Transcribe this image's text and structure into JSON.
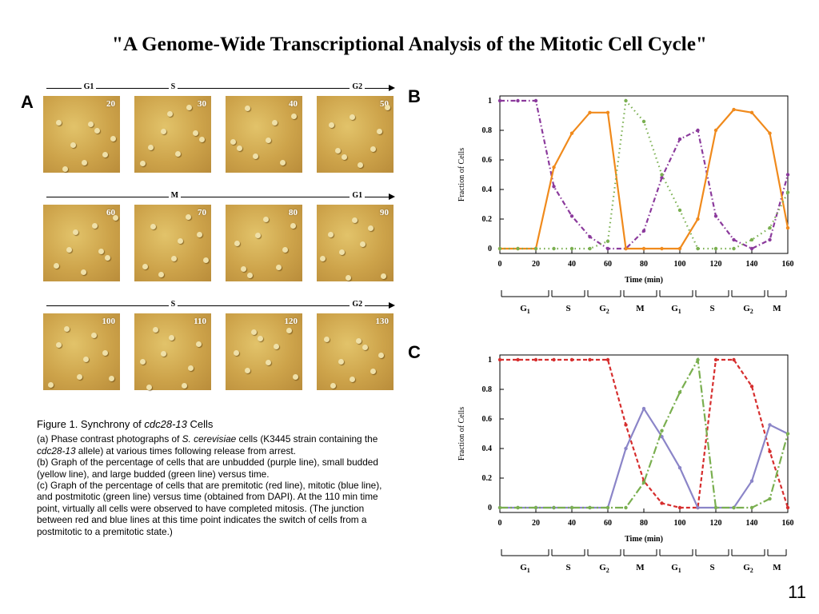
{
  "title": "\"A Genome-Wide Transcriptional Analysis of the Mitotic Cell Cycle\"",
  "page_number": "11",
  "panel_a": {
    "label": "A",
    "rows": [
      {
        "phases": [
          {
            "label": "G1",
            "pos": 0.1
          },
          {
            "label": "S",
            "pos": 0.35
          },
          {
            "label": "G2",
            "pos": 0.87
          }
        ],
        "photos": [
          "20",
          "30",
          "40",
          "50"
        ]
      },
      {
        "phases": [
          {
            "label": "M",
            "pos": 0.35
          },
          {
            "label": "G1",
            "pos": 0.87
          }
        ],
        "photos": [
          "60",
          "70",
          "80",
          "90"
        ]
      },
      {
        "phases": [
          {
            "label": "S",
            "pos": 0.35
          },
          {
            "label": "G2",
            "pos": 0.87
          }
        ],
        "photos": [
          "100",
          "110",
          "120",
          "130"
        ]
      }
    ]
  },
  "caption": {
    "title_prefix": "Figure 1.  Synchrony of ",
    "title_italic": "cdc28-13",
    "title_suffix": " Cells",
    "a_1": "(a) Phase contrast photographs of ",
    "a_it1": "S. cerevisiae",
    "a_2": " cells (K3445 strain containing the ",
    "a_it2": "cdc28-13",
    "a_3": " allele) at various times following release from arrest.",
    "b": "(b) Graph of the percentage of cells that are unbudded (purple line), small budded (yellow line), and large budded (green line) versus time.",
    "c": "(c) Graph of the percentage of cells that are premitotic (red line), mitotic (blue line), and postmitotic (green line) versus time (obtained from DAPI). At the 110 min time point, virtually all cells were observed to have completed mitosis. (The junction between red and blue lines at this time point indicates the switch of cells from a postmitotic to a premitotic state.)"
  },
  "chart_data": [
    {
      "panel": "B",
      "type": "line",
      "xlabel": "Time (min)",
      "ylabel": "Fraction of Cells",
      "xlim": [
        0,
        160
      ],
      "ylim": [
        0,
        1
      ],
      "xticks": [
        0,
        20,
        40,
        60,
        80,
        100,
        120,
        140,
        160
      ],
      "yticks": [
        0,
        0.2,
        0.4,
        0.6,
        0.8,
        1
      ],
      "series": [
        {
          "color": "#8b3a9c",
          "style": "dashdot",
          "x": [
            0,
            10,
            20,
            30,
            40,
            50,
            60,
            70,
            80,
            90,
            100,
            110,
            120,
            130,
            140,
            150,
            160
          ],
          "y": [
            1,
            1,
            1,
            0.42,
            0.22,
            0.08,
            0.0,
            0.0,
            0.12,
            0.48,
            0.74,
            0.8,
            0.22,
            0.06,
            0.0,
            0.06,
            0.5
          ]
        },
        {
          "color": "#f08a1c",
          "style": "solid",
          "x": [
            0,
            10,
            20,
            30,
            40,
            50,
            60,
            70,
            80,
            90,
            100,
            110,
            120,
            130,
            140,
            150,
            160
          ],
          "y": [
            0,
            0,
            0,
            0.55,
            0.78,
            0.92,
            0.92,
            0.0,
            0.0,
            0.0,
            0.0,
            0.2,
            0.8,
            0.94,
            0.92,
            0.78,
            0.14
          ]
        },
        {
          "color": "#7aaf50",
          "style": "dotted",
          "x": [
            0,
            10,
            20,
            30,
            40,
            50,
            60,
            70,
            80,
            90,
            100,
            110,
            120,
            130,
            140,
            150,
            160
          ],
          "y": [
            0,
            0,
            0,
            0,
            0,
            0,
            0.05,
            1.0,
            0.86,
            0.5,
            0.26,
            0.0,
            0.0,
            0.0,
            0.06,
            0.14,
            0.38
          ]
        }
      ],
      "phases": [
        {
          "label": "G",
          "sub": "1",
          "start": 0,
          "end": 28
        },
        {
          "label": "S",
          "sub": "",
          "start": 28,
          "end": 48
        },
        {
          "label": "G",
          "sub": "2",
          "start": 48,
          "end": 68
        },
        {
          "label": "M",
          "sub": "",
          "start": 68,
          "end": 88
        },
        {
          "label": "G",
          "sub": "1",
          "start": 88,
          "end": 108
        },
        {
          "label": "S",
          "sub": "",
          "start": 108,
          "end": 128
        },
        {
          "label": "G",
          "sub": "2",
          "start": 128,
          "end": 148
        },
        {
          "label": "M",
          "sub": "",
          "start": 148,
          "end": 160
        }
      ]
    },
    {
      "panel": "C",
      "type": "line",
      "xlabel": "Time (min)",
      "ylabel": "Fraction of Cells",
      "xlim": [
        0,
        160
      ],
      "ylim": [
        0,
        1
      ],
      "xticks": [
        0,
        20,
        40,
        60,
        80,
        100,
        120,
        140,
        160
      ],
      "yticks": [
        0,
        0.2,
        0.4,
        0.6,
        0.8,
        1
      ],
      "series": [
        {
          "color": "#d62e2e",
          "style": "dashed",
          "x": [
            0,
            10,
            20,
            30,
            40,
            50,
            60,
            70,
            80,
            90,
            100,
            110,
            120,
            130,
            140,
            150,
            160
          ],
          "y": [
            1,
            1,
            1,
            1,
            1,
            1,
            1,
            0.56,
            0.18,
            0.03,
            0.0,
            0.0,
            1.0,
            1.0,
            0.82,
            0.38,
            0.0
          ]
        },
        {
          "color": "#8b85c8",
          "style": "solid",
          "x": [
            0,
            10,
            20,
            30,
            40,
            50,
            60,
            70,
            80,
            90,
            100,
            110,
            120,
            130,
            140,
            150,
            160
          ],
          "y": [
            0,
            0,
            0,
            0,
            0,
            0,
            0,
            0.4,
            0.67,
            0.48,
            0.27,
            0.0,
            0.0,
            0.0,
            0.18,
            0.56,
            0.5
          ]
        },
        {
          "color": "#7aaf50",
          "style": "longdash",
          "x": [
            0,
            10,
            20,
            30,
            40,
            50,
            60,
            70,
            80,
            90,
            100,
            110,
            120,
            130,
            140,
            150,
            160
          ],
          "y": [
            0,
            0,
            0,
            0,
            0,
            0,
            0,
            0,
            0.17,
            0.52,
            0.78,
            1.0,
            0.0,
            0.0,
            0.0,
            0.06,
            0.5
          ]
        }
      ],
      "phases": [
        {
          "label": "G",
          "sub": "1",
          "start": 0,
          "end": 28
        },
        {
          "label": "S",
          "sub": "",
          "start": 28,
          "end": 48
        },
        {
          "label": "G",
          "sub": "2",
          "start": 48,
          "end": 68
        },
        {
          "label": "M",
          "sub": "",
          "start": 68,
          "end": 88
        },
        {
          "label": "G",
          "sub": "1",
          "start": 88,
          "end": 108
        },
        {
          "label": "S",
          "sub": "",
          "start": 108,
          "end": 128
        },
        {
          "label": "G",
          "sub": "2",
          "start": 128,
          "end": 148
        },
        {
          "label": "M",
          "sub": "",
          "start": 148,
          "end": 160
        }
      ]
    }
  ]
}
